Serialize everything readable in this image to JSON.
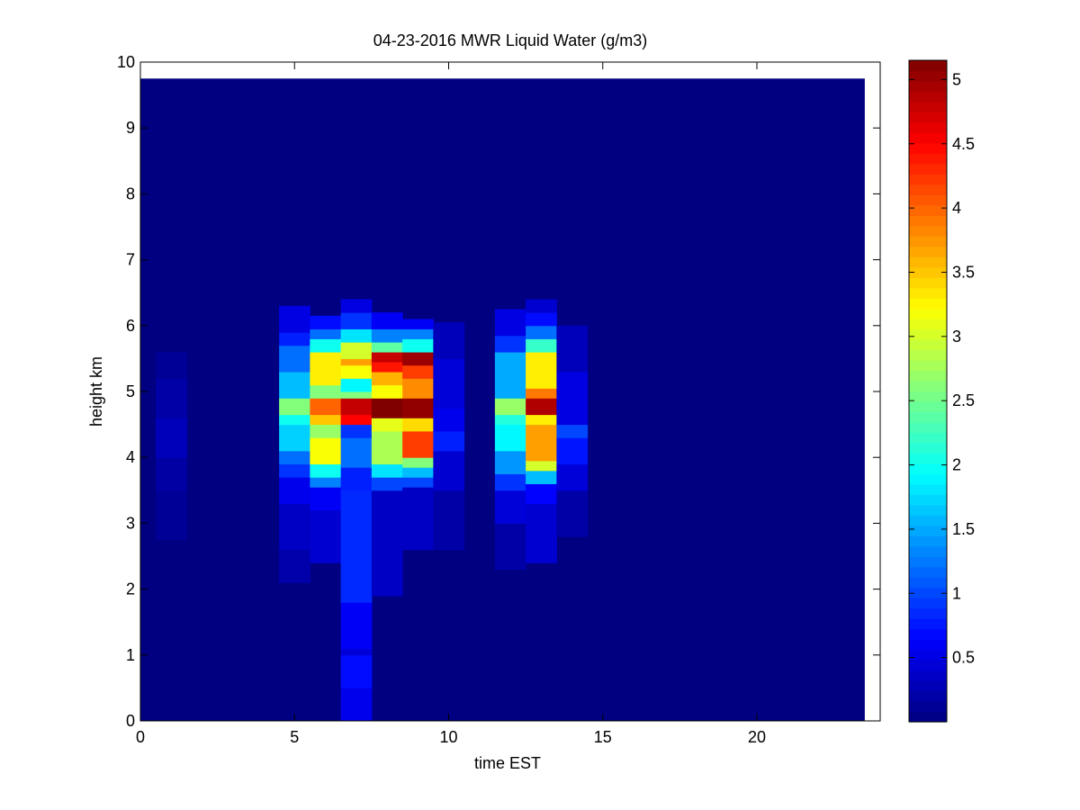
{
  "chart_data": {
    "type": "heatmap",
    "title": "04-23-2016 MWR Liquid Water (g/m3)",
    "xlabel": "time EST",
    "ylabel": "height km",
    "xlim": [
      0,
      24
    ],
    "ylim": [
      0,
      10
    ],
    "x_ticks": [
      0,
      5,
      10,
      15,
      20
    ],
    "y_ticks": [
      0,
      1,
      2,
      3,
      4,
      5,
      6,
      7,
      8,
      9,
      10
    ],
    "colorbar": {
      "colormap": "jet",
      "range": [
        0,
        5.15
      ],
      "ticks": [
        0.5,
        1,
        1.5,
        2,
        2.5,
        3,
        3.5,
        4,
        4.5,
        5
      ]
    },
    "background_value": 0.0,
    "data_extent": {
      "x": [
        0,
        23.5
      ],
      "y": [
        0,
        9.75
      ]
    },
    "columns": [
      {
        "x": [
          0.5,
          1.5
        ],
        "cells": [
          {
            "y": [
              2.75,
              3.5
            ],
            "v": 0.12
          },
          {
            "y": [
              3.5,
              4.0
            ],
            "v": 0.18
          },
          {
            "y": [
              4.0,
              4.6
            ],
            "v": 0.3
          },
          {
            "y": [
              4.6,
              5.2
            ],
            "v": 0.2
          },
          {
            "y": [
              5.2,
              5.6
            ],
            "v": 0.12
          }
        ]
      },
      {
        "x": [
          4.5,
          5.5
        ],
        "cells": [
          {
            "y": [
              2.1,
              2.6
            ],
            "v": 0.22
          },
          {
            "y": [
              2.6,
              3.3
            ],
            "v": 0.35
          },
          {
            "y": [
              3.3,
              3.7
            ],
            "v": 0.55
          },
          {
            "y": [
              3.7,
              3.9
            ],
            "v": 0.9
          },
          {
            "y": [
              3.9,
              4.1
            ],
            "v": 1.2
          },
          {
            "y": [
              4.1,
              4.5
            ],
            "v": 1.7
          },
          {
            "y": [
              4.5,
              4.65
            ],
            "v": 2.0
          },
          {
            "y": [
              4.65,
              4.9
            ],
            "v": 2.6
          },
          {
            "y": [
              4.9,
              5.3
            ],
            "v": 1.6
          },
          {
            "y": [
              5.3,
              5.7
            ],
            "v": 1.2
          },
          {
            "y": [
              5.7,
              5.9
            ],
            "v": 0.8
          },
          {
            "y": [
              5.9,
              6.3
            ],
            "v": 0.5
          }
        ]
      },
      {
        "x": [
          5.5,
          6.5
        ],
        "cells": [
          {
            "y": [
              2.4,
              3.2
            ],
            "v": 0.4
          },
          {
            "y": [
              3.2,
              3.55
            ],
            "v": 0.6
          },
          {
            "y": [
              3.55,
              3.7
            ],
            "v": 1.3
          },
          {
            "y": [
              3.7,
              3.9
            ],
            "v": 2.0
          },
          {
            "y": [
              3.9,
              4.3
            ],
            "v": 3.2
          },
          {
            "y": [
              4.3,
              4.5
            ],
            "v": 2.7
          },
          {
            "y": [
              4.5,
              4.65
            ],
            "v": 3.5
          },
          {
            "y": [
              4.65,
              4.9
            ],
            "v": 4.0
          },
          {
            "y": [
              4.9,
              5.1
            ],
            "v": 2.6
          },
          {
            "y": [
              5.1,
              5.6
            ],
            "v": 3.3
          },
          {
            "y": [
              5.6,
              5.8
            ],
            "v": 2.0
          },
          {
            "y": [
              5.8,
              5.95
            ],
            "v": 1.2
          },
          {
            "y": [
              5.95,
              6.15
            ],
            "v": 0.7
          }
        ]
      },
      {
        "x": [
          6.5,
          7.5
        ],
        "cells": [
          {
            "y": [
              0.0,
              0.5
            ],
            "v": 0.55
          },
          {
            "y": [
              0.5,
              1.0
            ],
            "v": 0.7
          },
          {
            "y": [
              1.0,
              1.1
            ],
            "v": 0.45
          },
          {
            "y": [
              1.1,
              1.8
            ],
            "v": 0.6
          },
          {
            "y": [
              1.8,
              3.5
            ],
            "v": 0.85
          },
          {
            "y": [
              3.5,
              3.85
            ],
            "v": 0.8
          },
          {
            "y": [
              3.85,
              4.3
            ],
            "v": 1.2
          },
          {
            "y": [
              4.3,
              4.5
            ],
            "v": 0.9
          },
          {
            "y": [
              4.5,
              4.65
            ],
            "v": 4.5
          },
          {
            "y": [
              4.65,
              4.9
            ],
            "v": 4.8
          },
          {
            "y": [
              4.9,
              5.0
            ],
            "v": 2.6
          },
          {
            "y": [
              5.0,
              5.2
            ],
            "v": 1.9
          },
          {
            "y": [
              5.2,
              5.4
            ],
            "v": 3.2
          },
          {
            "y": [
              5.4,
              5.5
            ],
            "v": 3.7
          },
          {
            "y": [
              5.5,
              5.75
            ],
            "v": 3.0
          },
          {
            "y": [
              5.75,
              5.95
            ],
            "v": 1.8
          },
          {
            "y": [
              5.95,
              6.2
            ],
            "v": 0.9
          },
          {
            "y": [
              6.2,
              6.4
            ],
            "v": 0.5
          }
        ]
      },
      {
        "x": [
          7.5,
          8.5
        ],
        "cells": [
          {
            "y": [
              1.9,
              3.5
            ],
            "v": 0.35
          },
          {
            "y": [
              3.5,
              3.7
            ],
            "v": 1.0
          },
          {
            "y": [
              3.7,
              3.9
            ],
            "v": 1.8
          },
          {
            "y": [
              3.9,
              4.4
            ],
            "v": 2.8
          },
          {
            "y": [
              4.4,
              4.6
            ],
            "v": 3.1
          },
          {
            "y": [
              4.6,
              4.9
            ],
            "v": 5.15
          },
          {
            "y": [
              4.9,
              5.1
            ],
            "v": 3.2
          },
          {
            "y": [
              5.1,
              5.3
            ],
            "v": 3.6
          },
          {
            "y": [
              5.3,
              5.45
            ],
            "v": 4.4
          },
          {
            "y": [
              5.45,
              5.6
            ],
            "v": 4.8
          },
          {
            "y": [
              5.6,
              5.75
            ],
            "v": 2.4
          },
          {
            "y": [
              5.75,
              5.95
            ],
            "v": 1.3
          },
          {
            "y": [
              5.95,
              6.2
            ],
            "v": 0.6
          }
        ]
      },
      {
        "x": [
          8.5,
          9.5
        ],
        "cells": [
          {
            "y": [
              2.6,
              3.55
            ],
            "v": 0.35
          },
          {
            "y": [
              3.55,
              3.7
            ],
            "v": 1.0
          },
          {
            "y": [
              3.7,
              3.85
            ],
            "v": 1.6
          },
          {
            "y": [
              3.85,
              4.0
            ],
            "v": 2.6
          },
          {
            "y": [
              4.0,
              4.4
            ],
            "v": 4.2
          },
          {
            "y": [
              4.4,
              4.6
            ],
            "v": 3.4
          },
          {
            "y": [
              4.6,
              4.9
            ],
            "v": 5.05
          },
          {
            "y": [
              4.9,
              5.2
            ],
            "v": 3.8
          },
          {
            "y": [
              5.2,
              5.4
            ],
            "v": 4.2
          },
          {
            "y": [
              5.4,
              5.6
            ],
            "v": 5.0
          },
          {
            "y": [
              5.6,
              5.8
            ],
            "v": 2.0
          },
          {
            "y": [
              5.8,
              5.95
            ],
            "v": 1.3
          },
          {
            "y": [
              5.95,
              6.1
            ],
            "v": 0.6
          }
        ]
      },
      {
        "x": [
          9.5,
          10.5
        ],
        "cells": [
          {
            "y": [
              2.6,
              3.5
            ],
            "v": 0.2
          },
          {
            "y": [
              3.5,
              4.1
            ],
            "v": 0.4
          },
          {
            "y": [
              4.1,
              4.4
            ],
            "v": 0.8
          },
          {
            "y": [
              4.4,
              4.75
            ],
            "v": 0.55
          },
          {
            "y": [
              4.75,
              5.5
            ],
            "v": 0.45
          },
          {
            "y": [
              5.5,
              6.05
            ],
            "v": 0.3
          }
        ]
      },
      {
        "x": [
          11.5,
          12.5
        ],
        "cells": [
          {
            "y": [
              2.3,
              3.0
            ],
            "v": 0.2
          },
          {
            "y": [
              3.0,
              3.5
            ],
            "v": 0.45
          },
          {
            "y": [
              3.5,
              3.75
            ],
            "v": 0.9
          },
          {
            "y": [
              3.75,
              4.1
            ],
            "v": 1.4
          },
          {
            "y": [
              4.1,
              4.5
            ],
            "v": 1.9
          },
          {
            "y": [
              4.5,
              4.65
            ],
            "v": 2.1
          },
          {
            "y": [
              4.65,
              4.9
            ],
            "v": 2.7
          },
          {
            "y": [
              4.9,
              5.6
            ],
            "v": 1.5
          },
          {
            "y": [
              5.6,
              5.85
            ],
            "v": 0.9
          },
          {
            "y": [
              5.85,
              6.25
            ],
            "v": 0.5
          }
        ]
      },
      {
        "x": [
          12.5,
          13.5
        ],
        "cells": [
          {
            "y": [
              2.4,
              3.3
            ],
            "v": 0.4
          },
          {
            "y": [
              3.3,
              3.6
            ],
            "v": 0.65
          },
          {
            "y": [
              3.6,
              3.8
            ],
            "v": 1.6
          },
          {
            "y": [
              3.8,
              3.95
            ],
            "v": 3.0
          },
          {
            "y": [
              3.95,
              4.5
            ],
            "v": 3.7
          },
          {
            "y": [
              4.5,
              4.65
            ],
            "v": 3.3
          },
          {
            "y": [
              4.65,
              4.9
            ],
            "v": 4.9
          },
          {
            "y": [
              4.9,
              5.05
            ],
            "v": 3.9
          },
          {
            "y": [
              5.05,
              5.6
            ],
            "v": 3.3
          },
          {
            "y": [
              5.6,
              5.8
            ],
            "v": 2.2
          },
          {
            "y": [
              5.8,
              6.0
            ],
            "v": 1.2
          },
          {
            "y": [
              6.0,
              6.2
            ],
            "v": 0.7
          },
          {
            "y": [
              6.2,
              6.4
            ],
            "v": 0.4
          }
        ]
      },
      {
        "x": [
          13.5,
          14.5
        ],
        "cells": [
          {
            "y": [
              2.8,
              3.5
            ],
            "v": 0.2
          },
          {
            "y": [
              3.5,
              3.9
            ],
            "v": 0.45
          },
          {
            "y": [
              3.9,
              4.3
            ],
            "v": 0.75
          },
          {
            "y": [
              4.3,
              4.5
            ],
            "v": 1.0
          },
          {
            "y": [
              4.5,
              5.3
            ],
            "v": 0.5
          },
          {
            "y": [
              5.3,
              6.0
            ],
            "v": 0.3
          }
        ]
      }
    ]
  }
}
